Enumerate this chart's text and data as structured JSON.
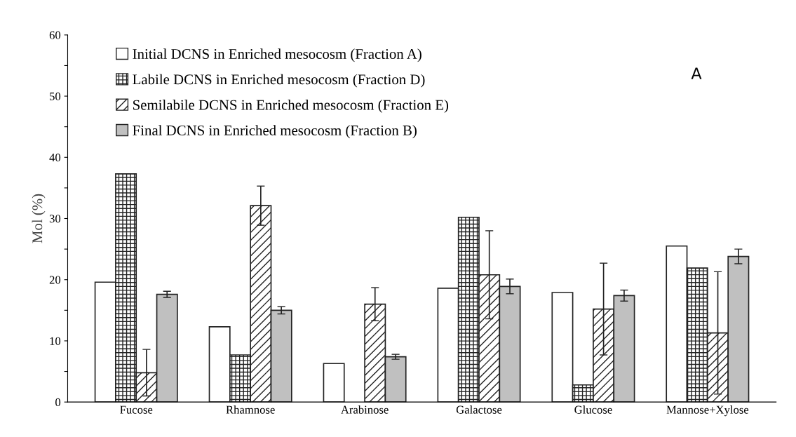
{
  "chart_data": {
    "type": "bar",
    "ylabel": "Mol (%)",
    "categories": [
      "Fucose",
      "Rhamnose",
      "Arabinose",
      "Galactose",
      "Glucose",
      "Mannose+Xylose"
    ],
    "series": [
      {
        "name": "Initial DCNS in Enriched mesocosm (Fraction A)",
        "color": "#ffffff",
        "values": [
          19.6,
          12.3,
          6.3,
          18.6,
          17.9,
          25.5
        ]
      },
      {
        "name": "Labile DCNS in Enriched mesocosm (Fraction D)",
        "color": "#222222",
        "values": [
          37.3,
          7.7,
          null,
          30.2,
          2.8,
          21.9
        ]
      },
      {
        "name": "Semilabile DCNS in Enriched mesocosm (Fraction E)",
        "color": "#222222",
        "values": [
          4.8,
          32.1,
          16.0,
          20.8,
          15.2,
          11.3
        ],
        "errors": [
          3.8,
          3.2,
          2.7,
          7.2,
          7.5,
          10.0
        ]
      },
      {
        "name": "Final DCNS in Enriched mesocosm (Fraction B)",
        "color": "#c0c0c0",
        "values": [
          17.6,
          15.0,
          7.4,
          18.9,
          17.4,
          23.8
        ],
        "errors": [
          0.5,
          0.6,
          0.4,
          1.2,
          0.9,
          1.2
        ]
      }
    ],
    "ylim": [
      0,
      60
    ],
    "yticks": [
      0,
      {
        "value": 5,
        "label": null
      },
      10,
      {
        "value": 15,
        "label": null
      },
      20,
      {
        "value": 25,
        "label": null
      },
      30,
      {
        "value": 35,
        "label": null
      },
      40,
      {
        "value": 45,
        "label": null
      },
      50,
      {
        "value": 55,
        "label": null
      },
      60
    ],
    "annotations": [
      "A"
    ],
    "grid": false,
    "legend": "top left"
  }
}
